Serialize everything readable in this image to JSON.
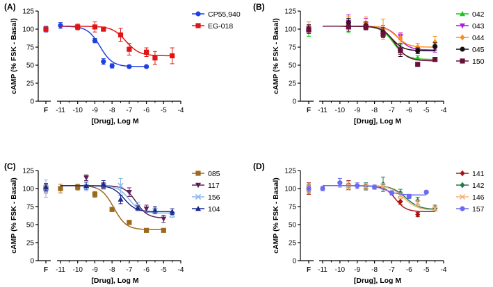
{
  "chart_data": [
    {
      "type": "line",
      "panel_label": "(A)",
      "ylabel": "cAMP (% FSK - Basal)",
      "xlabel": "[Drug], Log M",
      "xlim": [
        -11,
        -4
      ],
      "ylim": [
        0,
        125
      ],
      "x_ticks": [
        "-11",
        "-10",
        "-9",
        "-8",
        "-7",
        "-6",
        "-5",
        "-4"
      ],
      "y_ticks": [
        "0",
        "25",
        "50",
        "75",
        "100",
        "125"
      ],
      "control_label": "F",
      "series": [
        {
          "name": "CP55,940",
          "color": "#1f3fe0",
          "marker": "circle",
          "control": 100,
          "control_err": 4,
          "x": [
            -11,
            -10,
            -9,
            -8.5,
            -8,
            -7,
            -6
          ],
          "y": [
            105,
            103,
            84,
            55,
            49,
            48,
            48
          ],
          "err": [
            4,
            2,
            3,
            4,
            3,
            2,
            1
          ],
          "fit": {
            "top": 104,
            "bottom": 48,
            "logec50": -8.7,
            "hill": 1.2
          }
        },
        {
          "name": "EG-018",
          "color": "#e01414",
          "marker": "square",
          "control": 100,
          "control_err": 3,
          "x": [
            -10,
            -9,
            -8.5,
            -7.5,
            -7,
            -6,
            -5.5,
            -4.5
          ],
          "y": [
            103,
            103,
            100,
            92,
            72,
            68,
            60,
            63
          ],
          "err": [
            4,
            7,
            3,
            9,
            8,
            6,
            9,
            11
          ],
          "fit": {
            "top": 104,
            "bottom": 63,
            "logec50": -7.2,
            "hill": 1.1
          }
        }
      ]
    },
    {
      "type": "line",
      "panel_label": "(B)",
      "ylabel": "cAMP (% FSK - Basal)",
      "xlabel": "[Drug], Log M",
      "xlim": [
        -11,
        -4
      ],
      "ylim": [
        0,
        125
      ],
      "x_ticks": [
        "-11",
        "-10",
        "-9",
        "-8",
        "-7",
        "-6",
        "-5",
        "-4"
      ],
      "y_ticks": [
        "0",
        "25",
        "50",
        "75",
        "100",
        "125"
      ],
      "control_label": "F",
      "series": [
        {
          "name": "042",
          "color": "#1fc41f",
          "marker": "triangle",
          "control": 100,
          "control_err": 10,
          "x": [
            -9.5,
            -8.5,
            -7.5,
            -6.5,
            -5.5,
            -4.5
          ],
          "y": [
            105,
            104,
            97,
            73,
            60,
            58
          ],
          "err": [
            10,
            5,
            8,
            5,
            3,
            3
          ],
          "fit": {
            "top": 104,
            "bottom": 58,
            "logec50": -6.9,
            "hill": 1.2
          }
        },
        {
          "name": "043",
          "color": "#b216e8",
          "marker": "triangle-down",
          "control": 101,
          "control_err": 5,
          "x": [
            -9.5,
            -8.5,
            -7.5,
            -6.5,
            -5.5,
            -4.5
          ],
          "y": [
            110,
            107,
            99,
            90,
            71,
            73
          ],
          "err": [
            10,
            8,
            6,
            5,
            4,
            5
          ],
          "fit": {
            "top": 104,
            "bottom": 71,
            "logec50": -6.6,
            "hill": 1.3
          }
        },
        {
          "name": "044",
          "color": "#ff8c1a",
          "marker": "diamond",
          "control": 102,
          "control_err": 8,
          "x": [
            -9.5,
            -8.5,
            -7.5,
            -6.5,
            -5.5,
            -4.5
          ],
          "y": [
            110,
            108,
            100,
            88,
            75,
            82
          ],
          "err": [
            8,
            9,
            14,
            6,
            5,
            8
          ],
          "fit": {
            "top": 104,
            "bottom": 75,
            "logec50": -6.7,
            "hill": 1.3
          }
        },
        {
          "name": "045",
          "color": "#111111",
          "marker": "circle",
          "control": 100,
          "control_err": 6,
          "x": [
            -9.5,
            -8.5,
            -7.5,
            -6.5,
            -5.5,
            -4.5
          ],
          "y": [
            109,
            105,
            96,
            71,
            70,
            76
          ],
          "err": [
            6,
            5,
            6,
            9,
            4,
            5
          ],
          "fit": {
            "top": 104,
            "bottom": 70,
            "logec50": -7.0,
            "hill": 1.3
          }
        },
        {
          "name": "150",
          "color": "#6a0f3a",
          "marker": "square",
          "control": 99,
          "control_err": 5,
          "x": [
            -9.5,
            -8.5,
            -7.5,
            -6.5,
            -5.5,
            -4.5
          ],
          "y": [
            103,
            103,
            93,
            70,
            51,
            58
          ],
          "err": [
            6,
            4,
            5,
            5,
            3,
            3
          ],
          "fit": {
            "top": 104,
            "bottom": 56,
            "logec50": -6.8,
            "hill": 1.2
          }
        }
      ]
    },
    {
      "type": "line",
      "panel_label": "(C)",
      "ylabel": "cAMP (% FSK - Basal)",
      "xlabel": "[Drug], Log M",
      "xlim": [
        -11,
        -4
      ],
      "ylim": [
        0,
        125
      ],
      "x_ticks": [
        "-11",
        "-10",
        "-9",
        "-8",
        "-7",
        "-6",
        "-5",
        "-4"
      ],
      "y_ticks": [
        "0",
        "25",
        "50",
        "75",
        "100",
        "125"
      ],
      "control_label": "F",
      "series": [
        {
          "name": "085",
          "color": "#9c6a1c",
          "marker": "square",
          "control": 101,
          "control_err": 5,
          "x": [
            -11,
            -10,
            -9,
            -8.5,
            -8,
            -7,
            -6,
            -5
          ],
          "y": [
            100,
            102,
            92,
            104,
            71,
            53,
            42,
            42
          ],
          "err": [
            6,
            4,
            4,
            3,
            3,
            3,
            2,
            2
          ],
          "fit": {
            "top": 104,
            "bottom": 43,
            "logec50": -7.9,
            "hill": 1.2
          }
        },
        {
          "name": "117",
          "color": "#5e1e5a",
          "marker": "triangle-down",
          "control": 100,
          "control_err": 6,
          "x": [
            -9.5,
            -8.5,
            -7,
            -6,
            -5
          ],
          "y": [
            115,
            104,
            95,
            72,
            58
          ],
          "err": [
            4,
            4,
            6,
            5,
            5
          ],
          "fit": {
            "top": 104,
            "bottom": 59,
            "logec50": -6.6,
            "hill": 1.3
          }
        },
        {
          "name": "156",
          "color": "#87b6e8",
          "marker": "cross",
          "control": 100,
          "control_err": 12,
          "x": [
            -9.5,
            -8.5,
            -7.5,
            -6.5,
            -5.5,
            -4.5
          ],
          "y": [
            103,
            103,
            104,
            75,
            69,
            64
          ],
          "err": [
            6,
            4,
            10,
            6,
            4,
            4
          ],
          "fit": {
            "top": 104,
            "bottom": 66,
            "logec50": -7.0,
            "hill": 1.3
          }
        },
        {
          "name": "104",
          "color": "#1c2a8c",
          "marker": "triangle",
          "control": 102,
          "control_err": 5,
          "x": [
            -9.5,
            -8.5,
            -7.5,
            -6.5,
            -5.5,
            -4.5
          ],
          "y": [
            104,
            106,
            85,
            73,
            70,
            68
          ],
          "err": [
            5,
            5,
            6,
            3,
            5,
            4
          ],
          "fit": {
            "top": 104,
            "bottom": 68,
            "logec50": -7.3,
            "hill": 1.3
          }
        }
      ]
    },
    {
      "type": "line",
      "panel_label": "(D)",
      "ylabel": "cAMP (% FSK - Basal)",
      "xlabel": "[Drug], Log M",
      "xlim": [
        -11,
        -4
      ],
      "ylim": [
        0,
        125
      ],
      "x_ticks": [
        "-11",
        "-10",
        "-9",
        "-8",
        "-7",
        "-6",
        "-5",
        "-4"
      ],
      "y_ticks": [
        "0",
        "25",
        "50",
        "75",
        "100",
        "125"
      ],
      "control_label": "F",
      "series": [
        {
          "name": "141",
          "color": "#a81414",
          "marker": "diamond",
          "control": 100,
          "control_err": 8,
          "x": [
            -9.5,
            -8.5,
            -7.5,
            -6.5,
            -5.5,
            -4.5
          ],
          "y": [
            105,
            103,
            102,
            82,
            64,
            72
          ],
          "err": [
            6,
            3,
            3,
            4,
            3,
            3
          ],
          "fit": {
            "top": 104,
            "bottom": 68,
            "logec50": -6.8,
            "hill": 1.4
          }
        },
        {
          "name": "142",
          "color": "#1f7a4a",
          "marker": "diamond",
          "control": 100,
          "control_err": 6,
          "x": [
            -9.5,
            -8.5,
            -7.5,
            -6.5,
            -5.5,
            -4.5
          ],
          "y": [
            104,
            103,
            106,
            94,
            83,
            73
          ],
          "err": [
            6,
            5,
            10,
            5,
            5,
            4
          ],
          "fit": {
            "top": 104,
            "bottom": 71,
            "logec50": -6.2,
            "hill": 1.1
          }
        },
        {
          "name": "146",
          "color": "#f5b27a",
          "marker": "cross",
          "control": 100,
          "control_err": 5,
          "x": [
            -9.5,
            -8.5,
            -7.5,
            -6.5,
            -5.5,
            -4.5
          ],
          "y": [
            104,
            103,
            103,
            90,
            80,
            72
          ],
          "err": [
            6,
            4,
            4,
            4,
            4,
            3
          ],
          "fit": {
            "top": 104,
            "bottom": 70,
            "logec50": -6.3,
            "hill": 1.1
          }
        },
        {
          "name": "157",
          "color": "#6b6bf0",
          "marker": "circle",
          "control": 100,
          "control_err": 4,
          "x": [
            -11,
            -10,
            -9,
            -8,
            -7,
            -6,
            -5
          ],
          "y": [
            100,
            108,
            104,
            102,
            94,
            89,
            95
          ],
          "err": [
            3,
            6,
            4,
            3,
            3,
            3,
            2
          ],
          "fit": {
            "top": 104,
            "bottom": 91,
            "logec50": -7.3,
            "hill": 1.2
          }
        }
      ]
    }
  ]
}
